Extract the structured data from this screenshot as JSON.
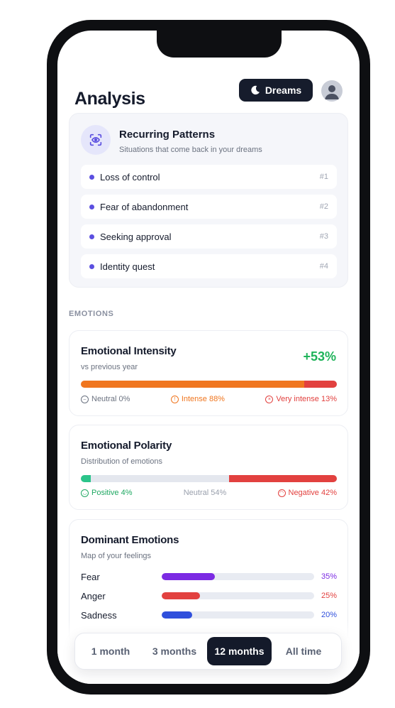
{
  "header": {
    "title": "Analysis",
    "dreams_label": "Dreams"
  },
  "patterns": {
    "title": "Recurring Patterns",
    "subtitle": "Situations that come back in your dreams",
    "items": [
      {
        "label": "Loss of control",
        "rank": "#1"
      },
      {
        "label": "Fear of abandonment",
        "rank": "#2"
      },
      {
        "label": "Seeking approval",
        "rank": "#3"
      },
      {
        "label": "Identity quest",
        "rank": "#4"
      }
    ]
  },
  "emotions_section": {
    "label": "EMOTIONS"
  },
  "intensity": {
    "title": "Emotional Intensity",
    "subtitle": "vs previous year",
    "delta": "+53%",
    "segments": {
      "neutral": 0,
      "intense": 88,
      "very_intense": 13
    },
    "legend": {
      "neutral": "Neutral 0%",
      "intense": "Intense 88%",
      "very_intense": "Very intense 13%"
    },
    "colors": {
      "neutral": "#6b7280",
      "intense": "#f0761f",
      "very_intense": "#e2413f"
    }
  },
  "polarity": {
    "title": "Emotional Polarity",
    "subtitle": "Distribution of emotions",
    "segments": {
      "positive": 4,
      "neutral": 54,
      "negative": 42
    },
    "legend": {
      "positive": "Positive 4%",
      "neutral": "Neutral 54%",
      "negative": "Negative 42%"
    },
    "colors": {
      "positive": "#2bc48a",
      "neutral": "#e4e7ee",
      "negative": "#e2413f"
    }
  },
  "dominant": {
    "title": "Dominant Emotions",
    "subtitle": "Map of your feelings",
    "items": [
      {
        "name": "Fear",
        "value": 35,
        "pct": "35%",
        "color": "#7c2be3"
      },
      {
        "name": "Anger",
        "value": 25,
        "pct": "25%",
        "color": "#e2413f"
      },
      {
        "name": "Sadness",
        "value": 20,
        "pct": "20%",
        "color": "#2f4fdc"
      }
    ]
  },
  "range": {
    "options": [
      "1 month",
      "3 months",
      "12 months",
      "All time"
    ],
    "selected": "12 months"
  }
}
